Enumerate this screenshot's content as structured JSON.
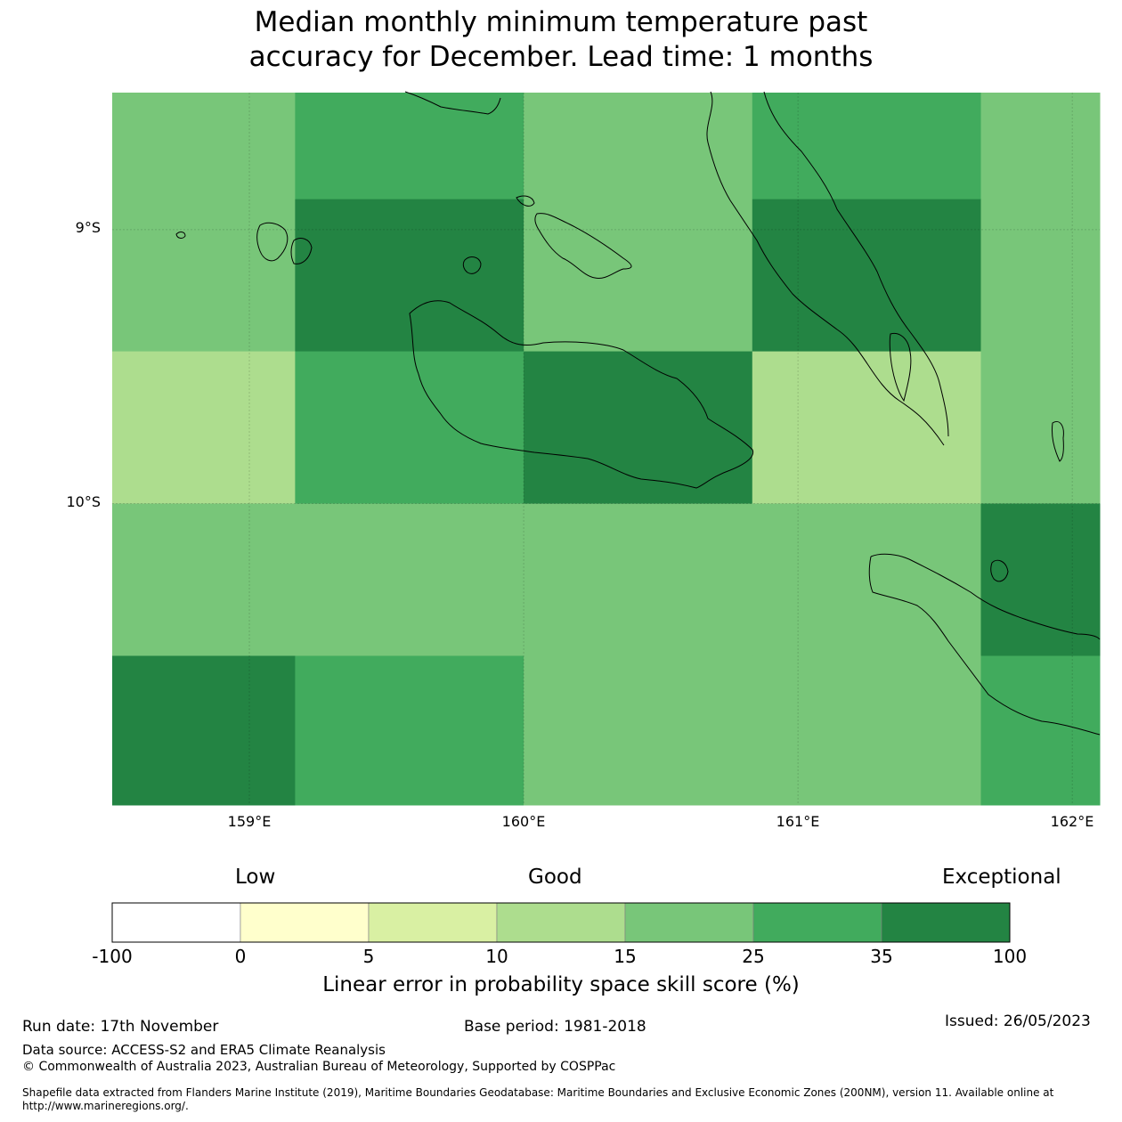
{
  "title": {
    "line1": "Median monthly minimum temperature past",
    "line2": "accuracy for December. Lead time: 1 months"
  },
  "map": {
    "lat_labels": [
      "9°S",
      "10°S"
    ],
    "lon_labels": [
      "159°E",
      "160°E",
      "161°E",
      "162°E"
    ],
    "lat_ticks": [
      -9,
      -10
    ],
    "lon_ticks": [
      159,
      160,
      161,
      162
    ],
    "extent": {
      "lon_min": 158.5,
      "lon_max": 162.1,
      "lat_min": -11.1,
      "lat_max": -8.5
    },
    "grid_lon_edges": [
      158.5,
      159.1667,
      160.0,
      160.8333,
      161.6667,
      162.1
    ],
    "grid_lat_edges": [
      -8.5,
      -8.8889,
      -9.4444,
      -10.0,
      -10.5556,
      -11.1
    ],
    "skill_classes": [
      [
        4,
        5,
        4,
        5,
        4
      ],
      [
        4,
        6,
        4,
        6,
        4
      ],
      [
        3,
        5,
        6,
        3,
        4
      ],
      [
        4,
        4,
        4,
        4,
        6
      ],
      [
        6,
        5,
        4,
        4,
        5
      ]
    ]
  },
  "colorbar": {
    "head_low": "Low",
    "head_good": "Good",
    "head_exceptional": "Exceptional",
    "ticks": [
      "-100",
      "0",
      "5",
      "10",
      "15",
      "25",
      "35",
      "100"
    ],
    "colors": [
      "#ffffff",
      "#ffffcc",
      "#d9f0a3",
      "#addd8e",
      "#78c679",
      "#41ab5d",
      "#238443"
    ],
    "label": "Linear error in probability space skill score (%)"
  },
  "footer": {
    "run_date": "Run date: 17th November",
    "base_period": "Base period: 1981-2018",
    "issued": "Issued: 26/05/2023",
    "data_source": "Data source: ACCESS-S2 and ERA5 Climate Reanalysis",
    "copyright": "© Commonwealth of Australia 2023, Australian Bureau of Meteorology, Supported by COSPPac",
    "shapefile": "Shapefile data extracted from Flanders Marine Institute (2019), Maritime Boundaries Geodatabase: Maritime Boundaries and Exclusive Economic Zones (200NM), version 11. Available online at http://www.marineregions.org/."
  }
}
